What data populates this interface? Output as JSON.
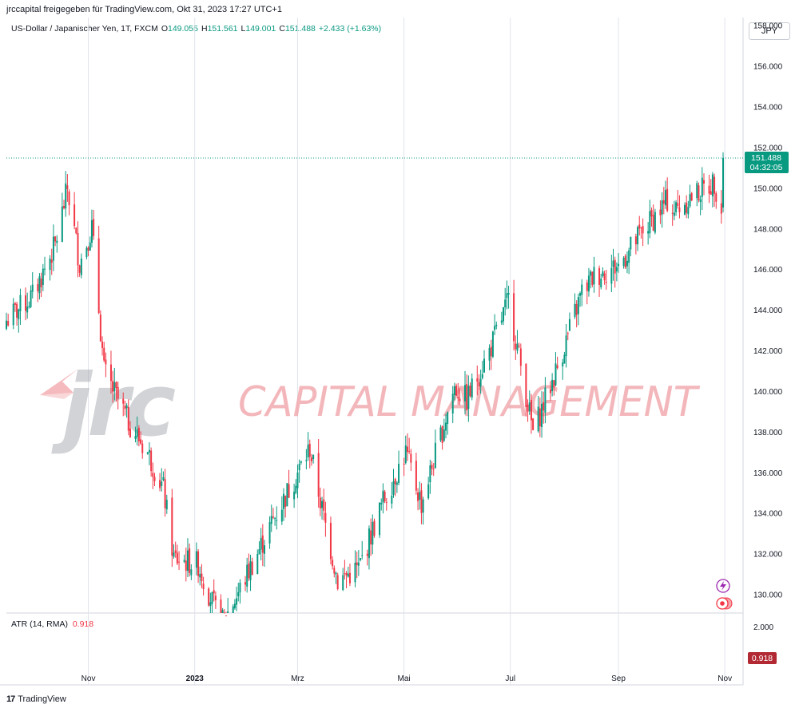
{
  "header": {
    "publisher_line": "jrccapital freigegeben für TradingView.com, Okt 31, 2023 17:27 UTC+1"
  },
  "legend": {
    "symbol": "US-Dollar / Japanischer Yen, 1T, FXCM",
    "open_label": "O",
    "open": "149.055",
    "high_label": "H",
    "high": "151.561",
    "low_label": "L",
    "low": "149.001",
    "close_label": "C",
    "close": "151.488",
    "change": "+2.433 (+1.63%)"
  },
  "currency_button": "JPY",
  "price_tag": {
    "price": "151.488",
    "countdown": "04:32:05",
    "color": "#089981"
  },
  "watermark": {
    "logo_text": "jrc",
    "tagline": "CAPITAL MANAGEMENT"
  },
  "atr": {
    "label": "ATR (14, RMA)",
    "value": "0.918",
    "axis_tick": "2.000",
    "tag_color": "#b22833"
  },
  "footer": {
    "brand": "TradingView",
    "logo": "17"
  },
  "colors": {
    "up": "#089981",
    "down": "#f23645",
    "grid": "#e0e3eb"
  },
  "chart_data": {
    "type": "candlestick",
    "title": "US-Dollar / Japanischer Yen, 1T, FXCM",
    "ylim": [
      129.1,
      158.4
    ],
    "y_ticks": [
      "158.000",
      "156.000",
      "154.000",
      "152.000",
      "150.000",
      "148.000",
      "146.000",
      "144.000",
      "142.000",
      "140.000",
      "138.000",
      "136.000",
      "134.000",
      "132.000",
      "130.000"
    ],
    "x_ticks": [
      "Nov",
      "2023",
      "Mrz",
      "Mai",
      "Jul",
      "Sep",
      "Nov"
    ],
    "last_price": 151.488,
    "close_path": [
      {
        "date": "2022-09-15",
        "close": 143.5
      },
      {
        "date": "2022-09-30",
        "close": 144.7
      },
      {
        "date": "2022-10-13",
        "close": 147.2
      },
      {
        "date": "2022-10-20",
        "close": 150.0
      },
      {
        "date": "2022-10-27",
        "close": 146.3
      },
      {
        "date": "2022-11-03",
        "close": 148.1
      },
      {
        "date": "2022-11-10",
        "close": 141.0
      },
      {
        "date": "2022-11-24",
        "close": 138.5
      },
      {
        "date": "2022-12-05",
        "close": 137.0
      },
      {
        "date": "2022-12-14",
        "close": 135.2
      },
      {
        "date": "2022-12-20",
        "close": 131.8
      },
      {
        "date": "2023-01-03",
        "close": 131.5
      },
      {
        "date": "2023-01-16",
        "close": 128.5
      },
      {
        "date": "2023-01-26",
        "close": 130.1
      },
      {
        "date": "2023-02-14",
        "close": 133.5
      },
      {
        "date": "2023-03-08",
        "close": 137.2
      },
      {
        "date": "2023-03-15",
        "close": 134.2
      },
      {
        "date": "2023-03-24",
        "close": 130.7
      },
      {
        "date": "2023-04-05",
        "close": 131.3
      },
      {
        "date": "2023-04-19",
        "close": 134.6
      },
      {
        "date": "2023-05-02",
        "close": 137.0
      },
      {
        "date": "2023-05-11",
        "close": 134.5
      },
      {
        "date": "2023-05-30",
        "close": 140.2
      },
      {
        "date": "2023-06-06",
        "close": 139.6
      },
      {
        "date": "2023-06-19",
        "close": 142.0
      },
      {
        "date": "2023-06-30",
        "close": 144.5
      },
      {
        "date": "2023-07-14",
        "close": 138.0
      },
      {
        "date": "2023-07-28",
        "close": 141.2
      },
      {
        "date": "2023-08-11",
        "close": 144.9
      },
      {
        "date": "2023-08-18",
        "close": 145.7
      },
      {
        "date": "2023-09-01",
        "close": 146.2
      },
      {
        "date": "2023-09-15",
        "close": 147.9
      },
      {
        "date": "2023-09-29",
        "close": 149.4
      },
      {
        "date": "2023-10-03",
        "close": 148.9
      },
      {
        "date": "2023-10-13",
        "close": 149.6
      },
      {
        "date": "2023-10-26",
        "close": 150.3
      },
      {
        "date": "2023-10-30",
        "close": 149.05
      },
      {
        "date": "2023-10-31",
        "close": 151.488
      }
    ],
    "atr": {
      "current": 0.918
    }
  }
}
